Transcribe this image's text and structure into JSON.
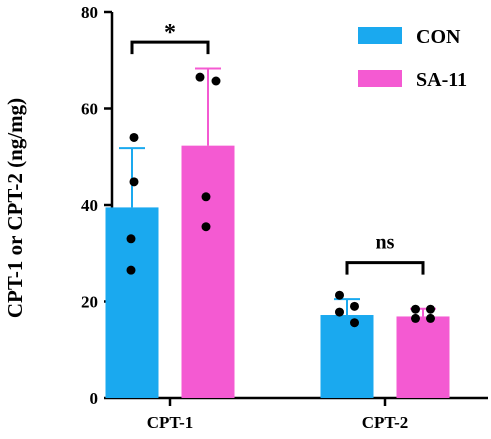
{
  "chart_data": {
    "type": "bar",
    "title": "",
    "xlabel": "",
    "ylabel": "CPT-1 or CPT-2 (ng/mg)",
    "ylim": [
      0,
      80
    ],
    "yticks": [
      0,
      20,
      40,
      60,
      80
    ],
    "categories": [
      "CPT-1",
      "CPT-2"
    ],
    "grid": false,
    "legend_position": "top-right",
    "series": [
      {
        "name": "CON",
        "color": "#1aa9ef",
        "values": [
          39.5,
          17.2
        ],
        "error": [
          12.3,
          3.3
        ],
        "points": [
          [
            54.0,
            44.8,
            33.0,
            26.5
          ],
          [
            21.3,
            19.0,
            17.8,
            15.6
          ]
        ]
      },
      {
        "name": "SA-11",
        "color": "#f45ad2",
        "values": [
          52.3,
          16.9
        ],
        "error": [
          16.0,
          1.6
        ],
        "points": [
          [
            66.5,
            65.7,
            41.7,
            35.5
          ],
          [
            18.4,
            18.4,
            16.5,
            16.5
          ]
        ]
      }
    ],
    "annotations": [
      {
        "text": "*",
        "category": "CPT-1",
        "y": 77.5
      },
      {
        "text": "ns",
        "category": "CPT-2",
        "y": 31.8
      }
    ]
  }
}
